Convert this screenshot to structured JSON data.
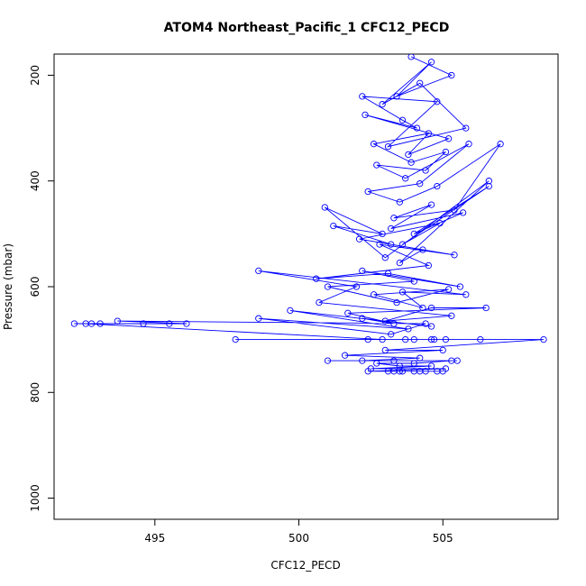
{
  "chart_data": {
    "type": "line",
    "title": "ATOM4 Northeast_Pacific_1 CFC12_PECD",
    "xlabel": "CFC12_PECD",
    "ylabel": "Pressure (mbar)",
    "xlim": [
      491.5,
      509.0
    ],
    "ylim": [
      1040,
      160
    ],
    "y_axis_inverted": true,
    "grid": false,
    "legend": "none",
    "x_ticks": [
      495,
      500,
      505
    ],
    "y_ticks": [
      200,
      400,
      600,
      800,
      1000
    ],
    "line_style": "lines with open circles",
    "color": "#0000ff",
    "series": [
      {
        "x": [
          503.9,
          505.3,
          503.4,
          504.6,
          502.9,
          504.2,
          505.8,
          503.1,
          504.8,
          502.2,
          503.6,
          504.1,
          502.3,
          505.2,
          503.8,
          504.5,
          502.6,
          503.9,
          505.1,
          504.4,
          502.7,
          503.7,
          505.9,
          504.2,
          502.4,
          503.5,
          504.8,
          507.0,
          505.4,
          503.3,
          504.6,
          503.2,
          505.7,
          504.0,
          506.6,
          503.6,
          504.9,
          502.1,
          504.3,
          503.5,
          506.6,
          503.0,
          500.9,
          502.9,
          501.2,
          503.2,
          505.4,
          502.8,
          504.5,
          500.6,
          503.1,
          505.6,
          502.2,
          504.0,
          501.0,
          503.4,
          505.2,
          502.6,
          504.3,
          503.6,
          505.8,
          498.6,
          502.0,
          500.7,
          505.3,
          503.0,
          504.6,
          506.5,
          501.7,
          503.3,
          502.2,
          504.6,
          499.7,
          503.8,
          498.6,
          503.2,
          504.4,
          493.7,
          496.1,
          494.6,
          492.8,
          495.5,
          493.1,
          492.2,
          492.6,
          502.9,
          504.0,
          506.3,
          504.6,
          502.4,
          505.1,
          503.7,
          504.7,
          497.8,
          508.5,
          503.0,
          505.0,
          501.6,
          504.2,
          502.2,
          505.5,
          503.3,
          501.0,
          505.3,
          504.0,
          502.7,
          503.5,
          504.6,
          502.5,
          505.1,
          502.4,
          504.0,
          503.3,
          505.0,
          503.6,
          504.2,
          503.1,
          504.4,
          503.5,
          504.8
        ],
        "y": [
          165,
          200,
          240,
          175,
          255,
          215,
          300,
          335,
          250,
          240,
          285,
          300,
          275,
          320,
          350,
          310,
          330,
          365,
          345,
          380,
          370,
          395,
          330,
          405,
          420,
          440,
          410,
          330,
          455,
          470,
          445,
          490,
          460,
          500,
          410,
          520,
          480,
          510,
          530,
          555,
          400,
          545,
          450,
          500,
          485,
          520,
          540,
          520,
          560,
          585,
          575,
          600,
          570,
          590,
          600,
          630,
          605,
          615,
          640,
          610,
          615,
          570,
          600,
          630,
          655,
          665,
          640,
          640,
          650,
          670,
          660,
          675,
          645,
          680,
          660,
          690,
          670,
          665,
          670,
          670,
          670,
          670,
          670,
          670,
          670,
          700,
          700,
          700,
          700,
          700,
          700,
          700,
          700,
          700,
          700,
          720,
          720,
          730,
          735,
          740,
          740,
          740,
          740,
          740,
          745,
          745,
          750,
          750,
          755,
          755,
          760,
          760,
          760,
          760,
          760,
          760,
          760,
          760,
          760,
          760
        ]
      }
    ]
  }
}
